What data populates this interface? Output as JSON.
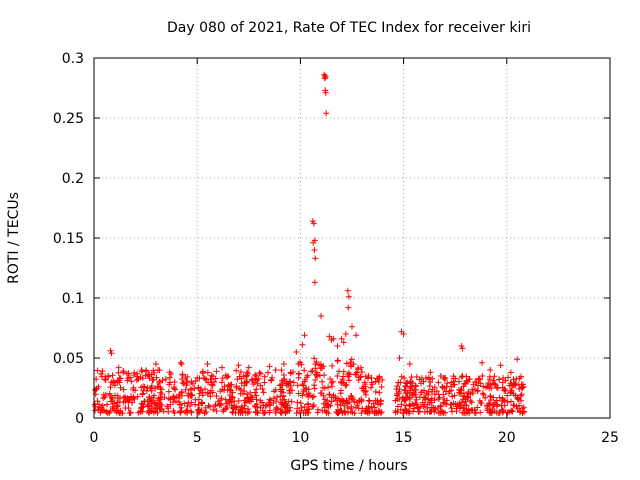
{
  "chart_data": {
    "type": "scatter",
    "title": "Day 080 of 2021, Rate Of TEC Index for receiver kiri",
    "xlabel": "GPS time / hours",
    "ylabel": "ROTI / TECUs",
    "xlim": [
      0,
      25
    ],
    "ylim": [
      0,
      0.3
    ],
    "xticks": [
      0,
      5,
      10,
      15,
      20,
      25
    ],
    "yticks": [
      0,
      0.05,
      0.1,
      0.15,
      0.2,
      0.25,
      0.3
    ],
    "grid": true,
    "marker": "+",
    "color": "#ff0000",
    "series": [
      {
        "name": "ROTI",
        "x": [
          10.6,
          10.65,
          10.7,
          10.62,
          10.68,
          10.72,
          10.7,
          11.0,
          11.15,
          11.18,
          11.2,
          11.22,
          11.2,
          11.23,
          11.25,
          12.3,
          12.35,
          12.32,
          12.5,
          12.7,
          14.9,
          15.0,
          17.8,
          17.85,
          10.2,
          9.8,
          9.9,
          15.3,
          11.5,
          11.8,
          12.1,
          0.8,
          0.85,
          4.2,
          4.25,
          5.5,
          7.0,
          8.5,
          10.1,
          11.4,
          11.6,
          12.0,
          12.2,
          13.3,
          14.8,
          16.3,
          18.8,
          19.7,
          20.5,
          1.2,
          2.3,
          3.0,
          3.1,
          6.2,
          7.5,
          8.8,
          9.2,
          13.8,
          16.8,
          19.2,
          20.2
        ],
        "y": [
          0.164,
          0.162,
          0.148,
          0.146,
          0.14,
          0.133,
          0.113,
          0.085,
          0.286,
          0.283,
          0.285,
          0.284,
          0.273,
          0.271,
          0.254,
          0.106,
          0.101,
          0.092,
          0.076,
          0.069,
          0.072,
          0.07,
          0.06,
          0.058,
          0.069,
          0.055,
          0.045,
          0.045,
          0.065,
          0.06,
          0.063,
          0.056,
          0.054,
          0.046,
          0.045,
          0.045,
          0.044,
          0.043,
          0.061,
          0.068,
          0.066,
          0.066,
          0.07,
          0.035,
          0.05,
          0.038,
          0.046,
          0.044,
          0.049,
          0.042,
          0.04,
          0.045,
          0.04,
          0.042,
          0.042,
          0.04,
          0.045,
          0.03,
          0.035,
          0.04,
          0.038
        ]
      }
    ],
    "bulk_ranges": [
      {
        "x": [
          0.0,
          4.0
        ],
        "y": [
          0.004,
          0.04
        ],
        "density": 10
      },
      {
        "x": [
          4.1,
          9.7
        ],
        "y": [
          0.004,
          0.04
        ],
        "density": 10
      },
      {
        "x": [
          9.8,
          13.0
        ],
        "y": [
          0.004,
          0.05
        ],
        "density": 10
      },
      {
        "x": [
          13.0,
          14.0
        ],
        "y": [
          0.004,
          0.035
        ],
        "density": 10
      },
      {
        "x": [
          14.6,
          20.9
        ],
        "y": [
          0.004,
          0.035
        ],
        "density": 10
      }
    ]
  }
}
